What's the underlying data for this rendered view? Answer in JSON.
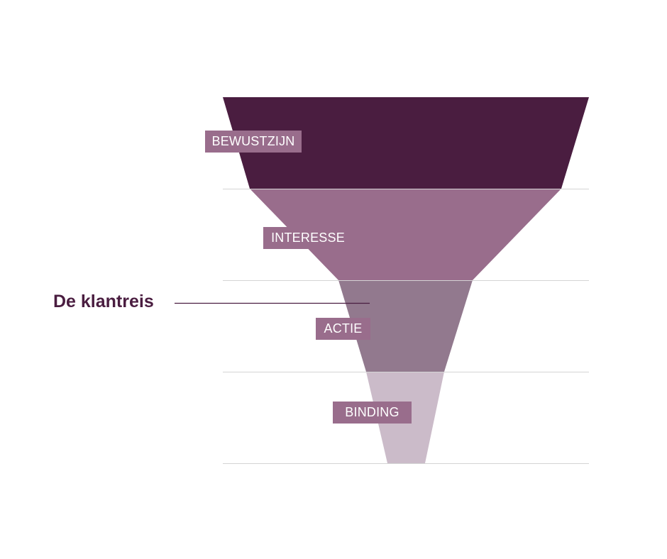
{
  "title": "De klantreis",
  "colors": {
    "title": "#4a1d40",
    "connector": "#4a1d40",
    "divider": "#d4d4d4",
    "label_bg": "#996d8c",
    "label_text": "#ffffff"
  },
  "stages": [
    {
      "label": "BEWUSTZIJN",
      "color": "#4a1d40"
    },
    {
      "label": "INTERESSE",
      "color": "#996d8c"
    },
    {
      "label": "ACTIE",
      "color": "#92798e"
    },
    {
      "label": "BINDING",
      "color": "#cbbbc9"
    }
  ]
}
